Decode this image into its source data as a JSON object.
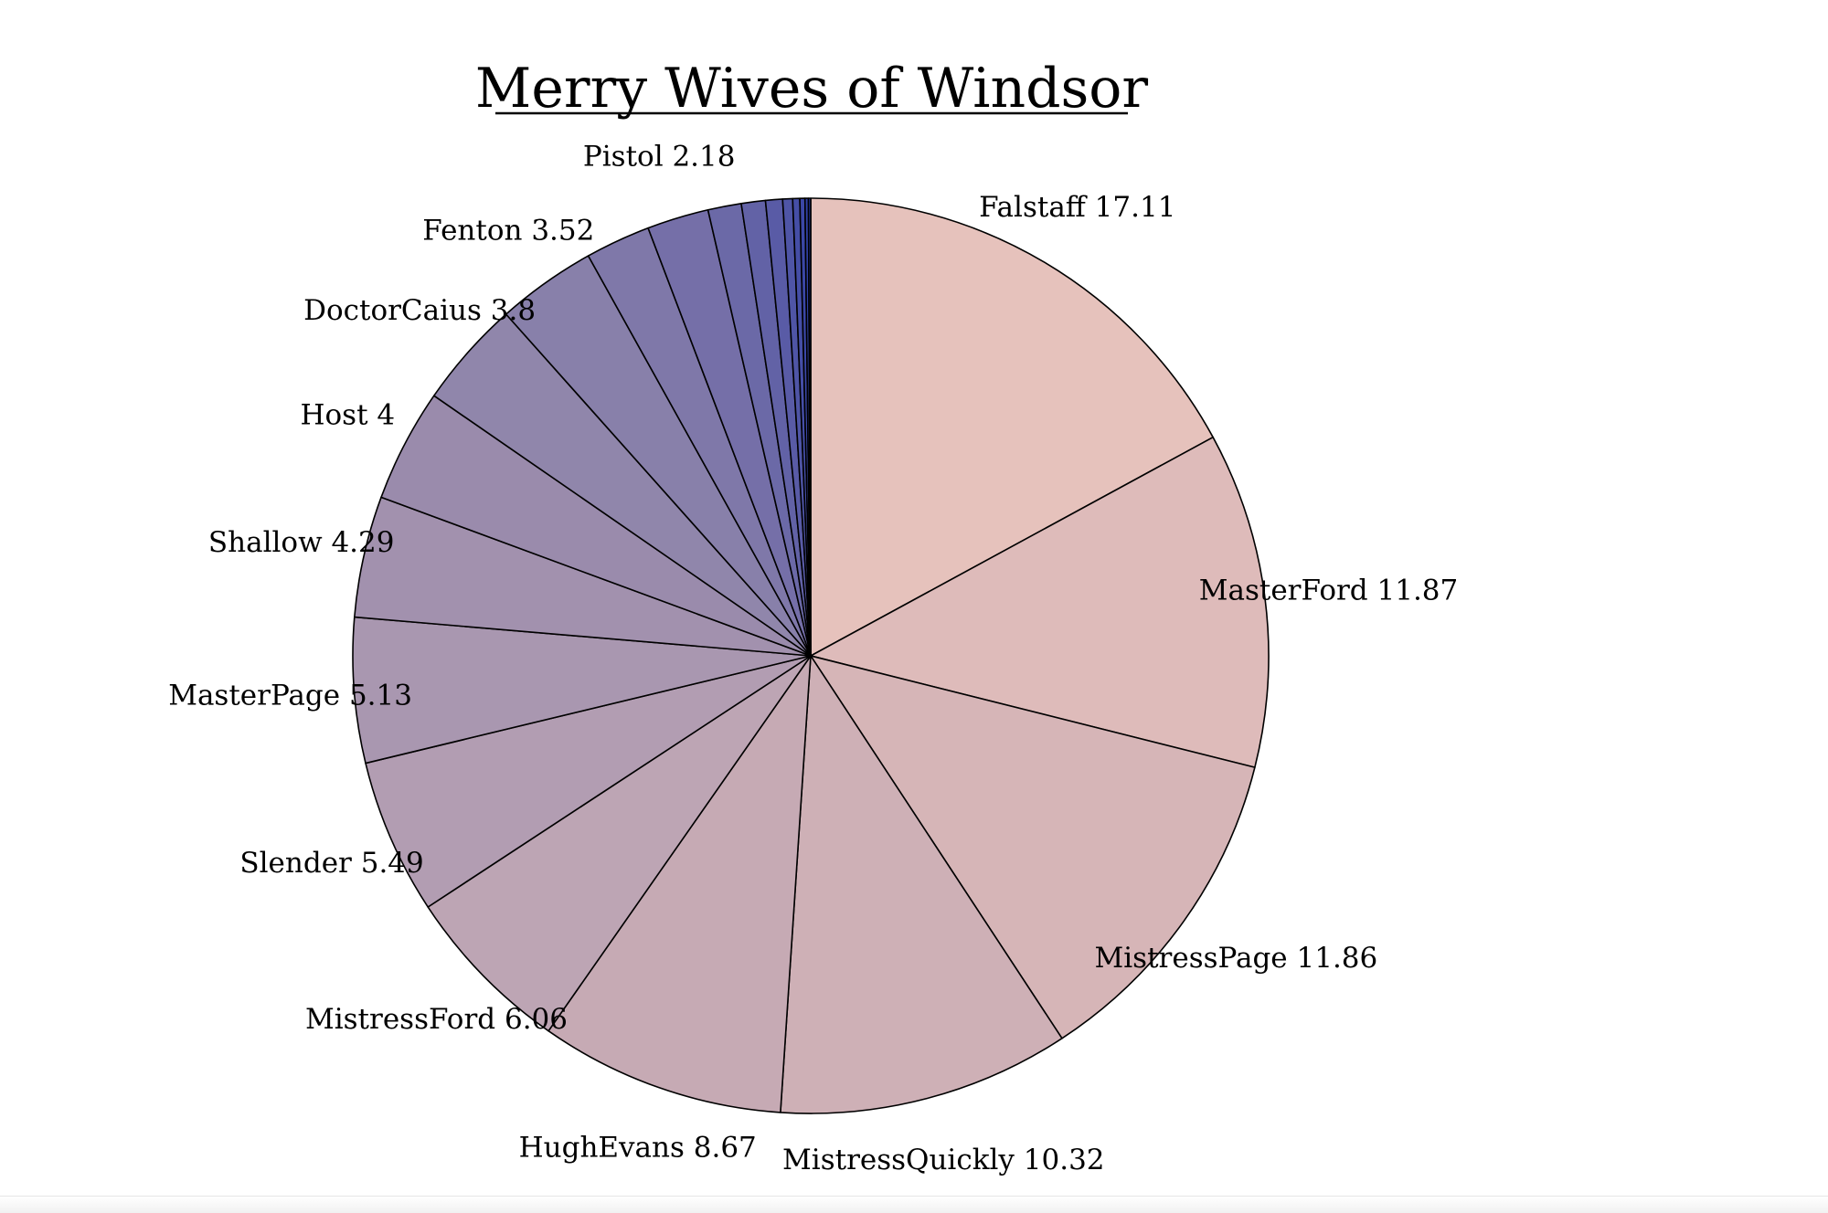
{
  "chart_data": {
    "type": "pie",
    "title": "Merry Wives of Windsor",
    "start": "top, clockwise",
    "slices": [
      {
        "label": "Falstaff",
        "value": 17.11,
        "color": "#e6c2bc"
      },
      {
        "label": "MasterFord",
        "value": 11.87,
        "color": "#debbba"
      },
      {
        "label": "MistressPage",
        "value": 11.86,
        "color": "#d6b5b7"
      },
      {
        "label": "MistressQuickly",
        "value": 10.32,
        "color": "#ceb0b6"
      },
      {
        "label": "HughEvans",
        "value": 8.67,
        "color": "#c6aab4"
      },
      {
        "label": "MistressFord",
        "value": 6.06,
        "color": "#bda5b4"
      },
      {
        "label": "Slender",
        "value": 5.49,
        "color": "#b29db2"
      },
      {
        "label": "MasterPage",
        "value": 5.13,
        "color": "#a997b0"
      },
      {
        "label": "Shallow",
        "value": 4.29,
        "color": "#a291ae"
      },
      {
        "label": "Host",
        "value": 4.0,
        "color": "#9a8bac"
      },
      {
        "label": "DoctorCaius",
        "value": 3.8,
        "color": "#9086ab"
      },
      {
        "label": "Fenton",
        "value": 3.52,
        "color": "#8880aa"
      },
      {
        "label": "",
        "value": 2.3,
        "color": "#7f78a9"
      },
      {
        "label": "Pistol",
        "value": 2.18,
        "color": "#756fa8"
      },
      {
        "label": "",
        "value": 1.18,
        "color": "#6b69a7"
      },
      {
        "label": "",
        "value": 0.85,
        "color": "#6262a6"
      },
      {
        "label": "",
        "value": 0.6,
        "color": "#595ba6"
      },
      {
        "label": "",
        "value": 0.35,
        "color": "#4f55a6"
      },
      {
        "label": "",
        "value": 0.25,
        "color": "#454ea6"
      },
      {
        "label": "",
        "value": 0.18,
        "color": "#3b47a6"
      },
      {
        "label": "",
        "value": 0.12,
        "color": "#3141a6"
      },
      {
        "label": "",
        "value": 0.08,
        "color": "#263aa6"
      }
    ]
  }
}
